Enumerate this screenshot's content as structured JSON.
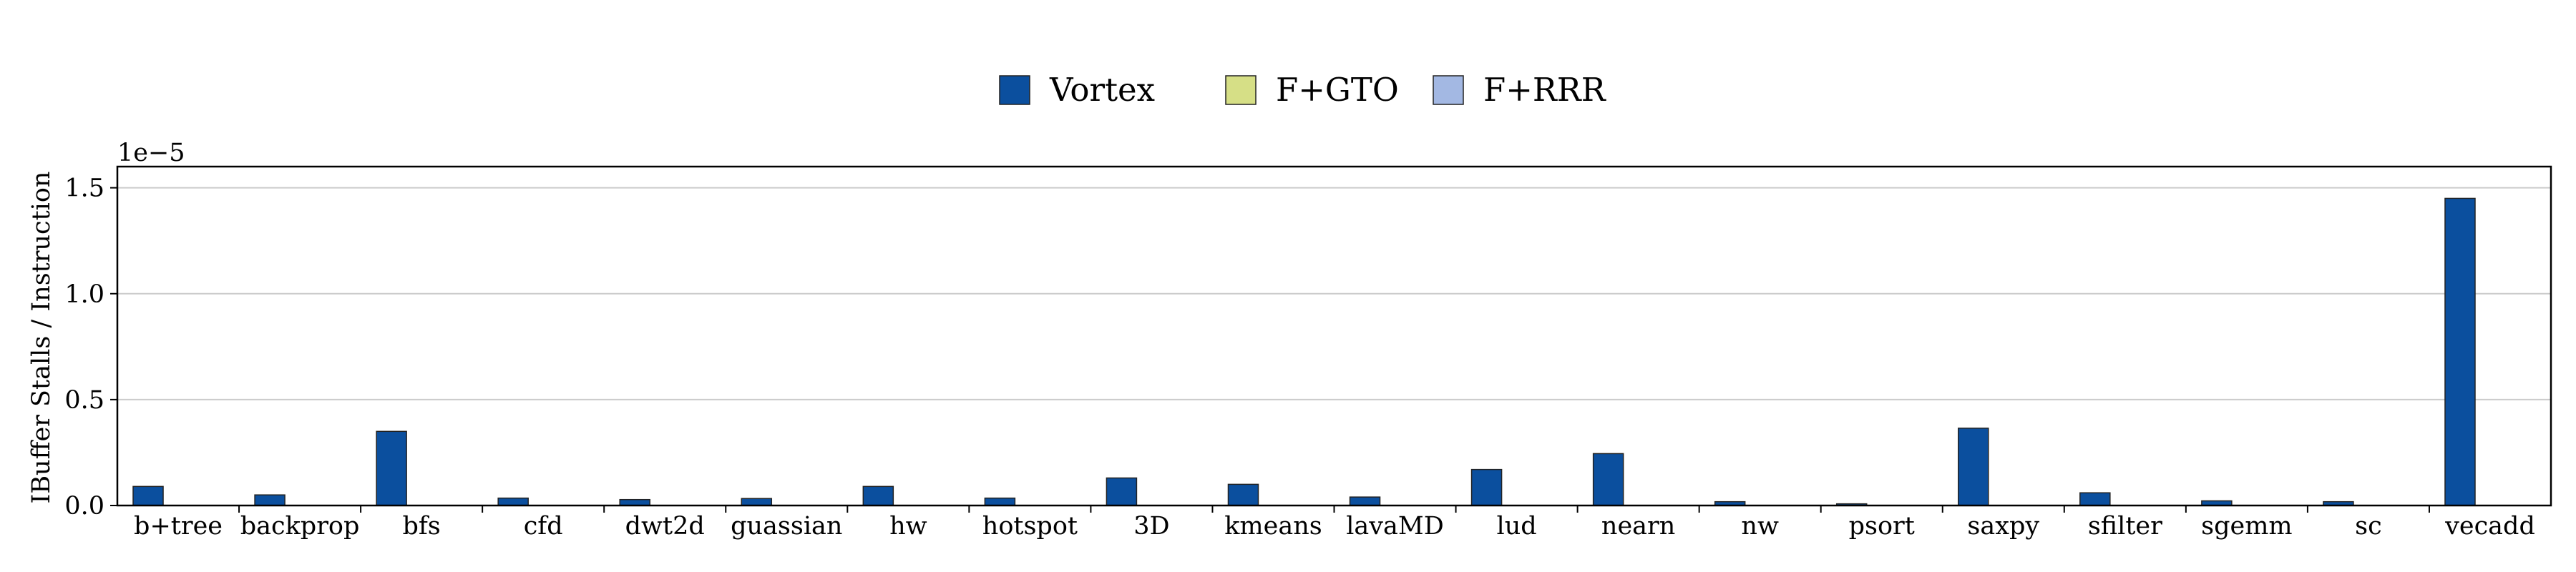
{
  "chart_data": {
    "type": "bar",
    "ylabel": "IBuffer Stalls / Instruction",
    "xlabel": "",
    "y_offset_text": "1e−5",
    "ylim": [
      0,
      1.6
    ],
    "yticks": [
      0.0,
      0.5,
      1.0,
      1.5
    ],
    "ytick_labels": [
      "0.0",
      "0.5",
      "1.0",
      "1.5"
    ],
    "grid": "horizontal",
    "legend_placement": "top-center",
    "categories": [
      "b+tree",
      "backprop",
      "bfs",
      "cfd",
      "dwt2d",
      "guassian",
      "hw",
      "hotspot",
      "3D",
      "kmeans",
      "lavaMD",
      "lud",
      "nearn",
      "nw",
      "psort",
      "saxpy",
      "sfilter",
      "sgemm",
      "sc",
      "vecadd"
    ],
    "series": [
      {
        "name": "Vortex",
        "color": "#0b4f9e",
        "values": [
          0.09,
          0.05,
          0.35,
          0.035,
          0.028,
          0.033,
          0.09,
          0.035,
          0.13,
          0.1,
          0.04,
          0.17,
          0.245,
          0.018,
          0.008,
          0.365,
          0.06,
          0.022,
          0.018,
          1.45
        ]
      },
      {
        "name": "F+GTO",
        "color": "#d6df86",
        "values": [
          0,
          0,
          0,
          0,
          0,
          0,
          0,
          0,
          0,
          0,
          0,
          0,
          0,
          0,
          0,
          0,
          0,
          0,
          0,
          0
        ]
      },
      {
        "name": "F+RRR",
        "color": "#a3b8e3",
        "values": [
          0,
          0,
          0,
          0,
          0,
          0,
          0,
          0,
          0,
          0,
          0,
          0,
          0,
          0,
          0,
          0,
          0,
          0,
          0,
          0
        ]
      }
    ]
  }
}
